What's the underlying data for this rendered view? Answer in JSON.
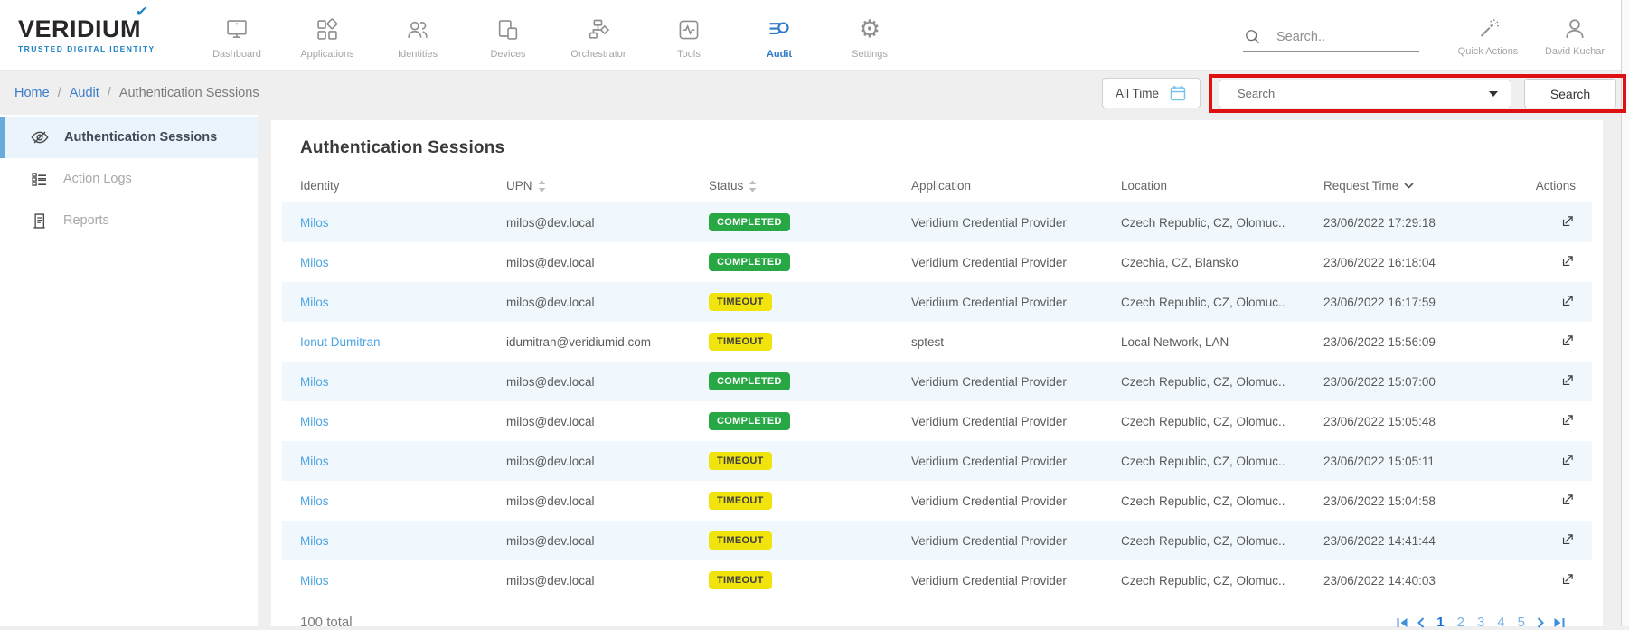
{
  "brand": {
    "name": "VERIDIUM",
    "tagline": "TRUSTED DIGITAL IDENTITY"
  },
  "topnav": {
    "items": [
      {
        "label": "Dashboard",
        "icon": "dashboard-icon",
        "active": false
      },
      {
        "label": "Applications",
        "icon": "applications-icon",
        "active": false
      },
      {
        "label": "Identities",
        "icon": "identities-icon",
        "active": false
      },
      {
        "label": "Devices",
        "icon": "devices-icon",
        "active": false
      },
      {
        "label": "Orchestrator",
        "icon": "orchestrator-icon",
        "active": false
      },
      {
        "label": "Tools",
        "icon": "tools-icon",
        "active": false
      },
      {
        "label": "Audit",
        "icon": "audit-icon",
        "active": true
      },
      {
        "label": "Settings",
        "icon": "settings-icon",
        "active": false
      }
    ]
  },
  "global_search": {
    "placeholder": "Search.."
  },
  "quick_actions": {
    "label": "Quick Actions"
  },
  "user": {
    "name": "David Kuchar"
  },
  "breadcrumb": [
    {
      "label": "Home",
      "link": true
    },
    {
      "label": "Audit",
      "link": true
    },
    {
      "label": "Authentication Sessions",
      "link": false
    }
  ],
  "breadcrumb_separator": "/",
  "filters": {
    "time_range": "All Time",
    "search_placeholder": "Search",
    "search_button": "Search"
  },
  "sidebar": [
    {
      "label": "Authentication Sessions",
      "icon": "eye-slash-icon",
      "active": true
    },
    {
      "label": "Action Logs",
      "icon": "action-logs-icon",
      "active": false
    },
    {
      "label": "Reports",
      "icon": "reports-icon",
      "active": false
    }
  ],
  "page": {
    "title": "Authentication Sessions",
    "total": "100 total"
  },
  "table": {
    "columns": [
      {
        "label": "Identity",
        "sort": "none"
      },
      {
        "label": "UPN",
        "sort": "both"
      },
      {
        "label": "Status",
        "sort": "both"
      },
      {
        "label": "Application",
        "sort": "none"
      },
      {
        "label": "Location",
        "sort": "none"
      },
      {
        "label": "Request Time",
        "sort": "desc"
      },
      {
        "label": "Actions",
        "sort": "none"
      }
    ],
    "rows": [
      {
        "identity": "Milos",
        "upn": "milos@dev.local",
        "status": "COMPLETED",
        "application": "Veridium Credential Provider",
        "location": "Czech Republic, CZ, Olomuc..",
        "request_time": "23/06/2022 17:29:18"
      },
      {
        "identity": "Milos",
        "upn": "milos@dev.local",
        "status": "COMPLETED",
        "application": "Veridium Credential Provider",
        "location": "Czechia, CZ, Blansko",
        "request_time": "23/06/2022 16:18:04"
      },
      {
        "identity": "Milos",
        "upn": "milos@dev.local",
        "status": "TIMEOUT",
        "application": "Veridium Credential Provider",
        "location": "Czech Republic, CZ, Olomuc..",
        "request_time": "23/06/2022 16:17:59"
      },
      {
        "identity": "Ionut Dumitran",
        "upn": "idumitran@veridiumid.com",
        "status": "TIMEOUT",
        "application": "sptest",
        "location": "Local Network, LAN",
        "request_time": "23/06/2022 15:56:09"
      },
      {
        "identity": "Milos",
        "upn": "milos@dev.local",
        "status": "COMPLETED",
        "application": "Veridium Credential Provider",
        "location": "Czech Republic, CZ, Olomuc..",
        "request_time": "23/06/2022 15:07:00"
      },
      {
        "identity": "Milos",
        "upn": "milos@dev.local",
        "status": "COMPLETED",
        "application": "Veridium Credential Provider",
        "location": "Czech Republic, CZ, Olomuc..",
        "request_time": "23/06/2022 15:05:48"
      },
      {
        "identity": "Milos",
        "upn": "milos@dev.local",
        "status": "TIMEOUT",
        "application": "Veridium Credential Provider",
        "location": "Czech Republic, CZ, Olomuc..",
        "request_time": "23/06/2022 15:05:11"
      },
      {
        "identity": "Milos",
        "upn": "milos@dev.local",
        "status": "TIMEOUT",
        "application": "Veridium Credential Provider",
        "location": "Czech Republic, CZ, Olomuc..",
        "request_time": "23/06/2022 15:04:58"
      },
      {
        "identity": "Milos",
        "upn": "milos@dev.local",
        "status": "TIMEOUT",
        "application": "Veridium Credential Provider",
        "location": "Czech Republic, CZ, Olomuc..",
        "request_time": "23/06/2022 14:41:44"
      },
      {
        "identity": "Milos",
        "upn": "milos@dev.local",
        "status": "TIMEOUT",
        "application": "Veridium Credential Provider",
        "location": "Czech Republic, CZ, Olomuc..",
        "request_time": "23/06/2022 14:40:03"
      }
    ]
  },
  "status_styles": {
    "COMPLETED": {
      "bg": "#28a745",
      "fg": "#ffffff"
    },
    "TIMEOUT": {
      "bg": "#f0e40c",
      "fg": "#3f3f3f"
    }
  },
  "pagination": {
    "pages": [
      "1",
      "2",
      "3",
      "4",
      "5"
    ],
    "active": "1"
  },
  "colors": {
    "accent_blue": "#2e79c7",
    "link_blue": "#4ba4e3",
    "annotation_red": "#dd1111"
  }
}
